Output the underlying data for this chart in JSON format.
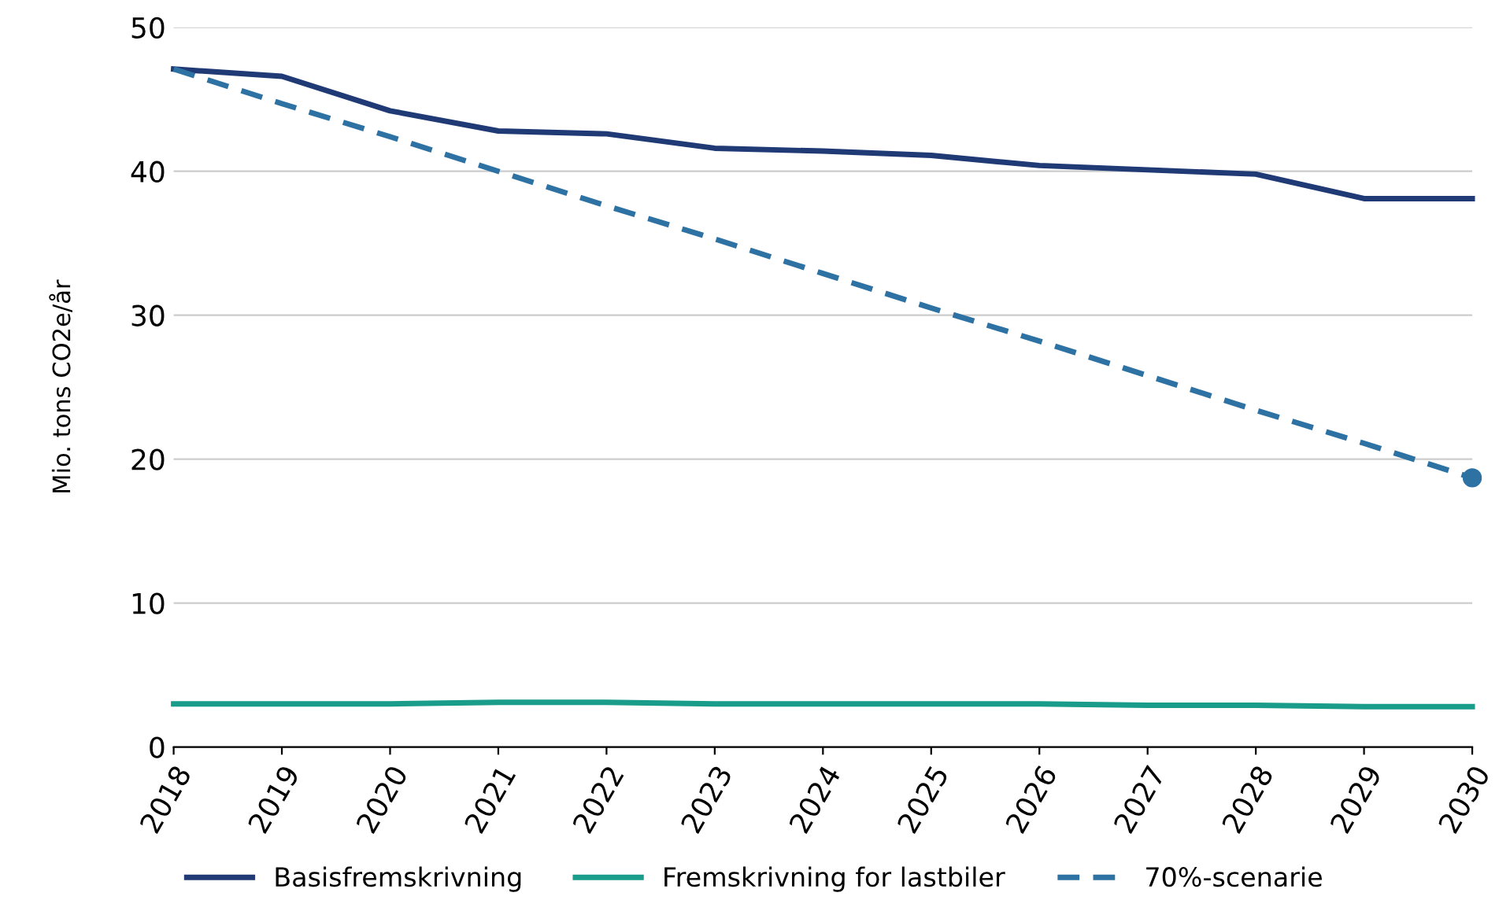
{
  "chart_data": {
    "type": "line",
    "ylabel": "Mio. tons CO2e/år",
    "x": [
      2018,
      2019,
      2020,
      2021,
      2022,
      2023,
      2024,
      2025,
      2026,
      2027,
      2028,
      2029,
      2030
    ],
    "xlim": [
      2018,
      2030
    ],
    "xticks": [
      2018,
      2019,
      2020,
      2021,
      2022,
      2023,
      2024,
      2025,
      2026,
      2027,
      2028,
      2029,
      2030
    ],
    "ylim": [
      0,
      50
    ],
    "yticks": [
      0,
      10,
      20,
      30,
      40,
      50
    ],
    "grid": "y",
    "legend": "bottom",
    "series": [
      {
        "name": "Basisfremskrivning",
        "color": "#1f3a75",
        "values": [
          47.1,
          46.6,
          44.2,
          42.8,
          42.6,
          41.6,
          41.4,
          41.1,
          40.4,
          40.1,
          39.8,
          38.1,
          38.1
        ]
      },
      {
        "name": "Fremskrivning for lastbiler",
        "color": "#1a9c8a",
        "values": [
          3.0,
          3.0,
          3.0,
          3.1,
          3.1,
          3.0,
          3.0,
          3.0,
          3.0,
          2.9,
          2.9,
          2.8,
          2.8
        ]
      },
      {
        "name": "70%-scenarie",
        "color": "#2e72a3",
        "line_style": "dashed",
        "values": [
          47.1,
          44.7,
          42.4,
          40.0,
          37.6,
          35.3,
          32.9,
          30.5,
          28.2,
          25.8,
          23.4,
          21.1,
          18.7
        ]
      },
      {
        "type": "scatter",
        "color": "#2e72a3",
        "marker": "circle",
        "values": [
          null,
          null,
          null,
          null,
          null,
          null,
          null,
          null,
          null,
          null,
          null,
          null,
          18.7
        ]
      }
    ]
  }
}
